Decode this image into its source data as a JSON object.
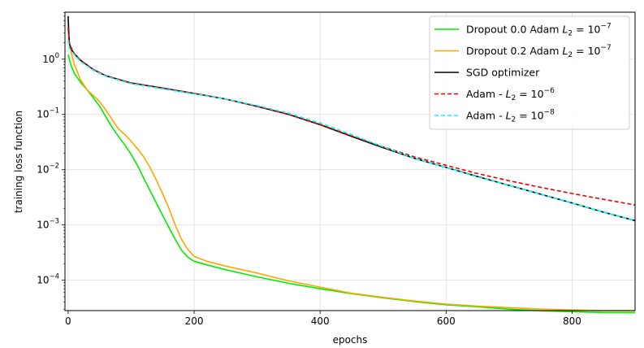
{
  "chart_data": {
    "type": "line",
    "xlabel": "epochs",
    "ylabel": "training loss function",
    "xlim": [
      -5,
      900
    ],
    "ylim_log10": [
      -4.55,
      0.85
    ],
    "yscale": "log",
    "grid": true,
    "legend_position": "top-right",
    "x_ticks": [
      {
        "value": 0,
        "label": "0"
      },
      {
        "value": 200,
        "label": "200"
      },
      {
        "value": 400,
        "label": "400"
      },
      {
        "value": 600,
        "label": "600"
      },
      {
        "value": 800,
        "label": "800"
      }
    ],
    "y_ticks": [
      {
        "exp": 0,
        "base": "10",
        "sup": "0"
      },
      {
        "exp": -1,
        "base": "10",
        "sup": "−1"
      },
      {
        "exp": -2,
        "base": "10",
        "sup": "−2"
      },
      {
        "exp": -3,
        "base": "10",
        "sup": "−3"
      },
      {
        "exp": -4,
        "base": "10",
        "sup": "−4"
      }
    ],
    "series": [
      {
        "name": "Dropout 0.0 Adam L2 = 10^-7",
        "legend": {
          "prefix": "Dropout 0.0 Adam ",
          "var": "L",
          "sub": "2",
          "eq": " = 10",
          "sup": "−7"
        },
        "color": "#00ee00",
        "dash": "solid",
        "x": [
          0,
          5,
          10,
          20,
          30,
          40,
          50,
          60,
          70,
          80,
          90,
          100,
          110,
          120,
          130,
          140,
          150,
          160,
          170,
          180,
          190,
          200,
          220,
          250,
          300,
          350,
          400,
          450,
          500,
          550,
          600,
          650,
          700,
          750,
          800,
          850,
          900
        ],
        "y": [
          1.2,
          0.75,
          0.55,
          0.38,
          0.28,
          0.2,
          0.14,
          0.09,
          0.058,
          0.04,
          0.028,
          0.019,
          0.012,
          0.007,
          0.0042,
          0.0025,
          0.0015,
          0.0009,
          0.00055,
          0.00035,
          0.00026,
          0.00022,
          0.00019,
          0.000155,
          0.000115,
          8.8e-05,
          7e-05,
          5.7e-05,
          4.8e-05,
          4.1e-05,
          3.6e-05,
          3.3e-05,
          3e-05,
          2.8e-05,
          2.7e-05,
          2.6e-05,
          2.6e-05
        ]
      },
      {
        "name": "Dropout 0.2 Adam L2 = 10^-7",
        "legend": {
          "prefix": "Dropout 0.2 Adam ",
          "var": "L",
          "sub": "2",
          "eq": " = 10",
          "sup": "−7"
        },
        "color": "#ffa500",
        "dash": "solid",
        "x": [
          0,
          2,
          5,
          10,
          20,
          30,
          40,
          50,
          60,
          70,
          80,
          90,
          100,
          110,
          120,
          130,
          140,
          150,
          160,
          170,
          180,
          190,
          200,
          220,
          250,
          300,
          350,
          400,
          450,
          500,
          550,
          600,
          650,
          700,
          750,
          800,
          850,
          900
        ],
        "y": [
          3.5,
          2.0,
          1.3,
          0.8,
          0.42,
          0.28,
          0.22,
          0.17,
          0.12,
          0.08,
          0.055,
          0.043,
          0.033,
          0.024,
          0.017,
          0.011,
          0.0065,
          0.0037,
          0.002,
          0.001,
          0.00055,
          0.00036,
          0.00027,
          0.00022,
          0.00018,
          0.000135,
          9.7e-05,
          7.5e-05,
          5.8e-05,
          4.9e-05,
          4.2e-05,
          3.7e-05,
          3.4e-05,
          3.2e-05,
          3e-05,
          2.9e-05,
          2.8e-05,
          2.8e-05
        ]
      },
      {
        "name": "SGD optimizer",
        "legend": {
          "prefix": "SGD optimizer"
        },
        "color": "#000000",
        "dash": "solid",
        "x": [
          0,
          1,
          2,
          5,
          10,
          20,
          40,
          60,
          80,
          100,
          150,
          200,
          250,
          300,
          350,
          400,
          450,
          500,
          550,
          600,
          650,
          700,
          750,
          800,
          850,
          900
        ],
        "y": [
          6.0,
          3.0,
          1.9,
          1.5,
          1.25,
          0.95,
          0.65,
          0.5,
          0.43,
          0.37,
          0.3,
          0.24,
          0.19,
          0.14,
          0.1,
          0.065,
          0.04,
          0.025,
          0.016,
          0.011,
          0.0075,
          0.0052,
          0.0036,
          0.0025,
          0.0017,
          0.0012
        ]
      },
      {
        "name": "Adam - L2 = 10^-6",
        "legend": {
          "prefix": "Adam - ",
          "var": "L",
          "sub": "2",
          "eq": " = 10",
          "sup": "−6"
        },
        "color": "#ee0000",
        "dash": "dashed",
        "x": [
          0,
          2,
          5,
          10,
          20,
          40,
          60,
          80,
          100,
          150,
          200,
          250,
          300,
          350,
          400,
          450,
          500,
          550,
          600,
          650,
          700,
          750,
          800,
          850,
          900
        ],
        "y": [
          3.8,
          2.0,
          1.6,
          1.25,
          0.95,
          0.65,
          0.5,
          0.43,
          0.37,
          0.3,
          0.24,
          0.19,
          0.14,
          0.1,
          0.066,
          0.041,
          0.026,
          0.017,
          0.012,
          0.0085,
          0.0063,
          0.0048,
          0.0037,
          0.0029,
          0.0023
        ]
      },
      {
        "name": "Adam - L2 = 10^-8",
        "legend": {
          "prefix": "Adam - ",
          "var": "L",
          "sub": "2",
          "eq": " = 10",
          "sup": "−8"
        },
        "color": "#00ffff",
        "dash": "dashed",
        "x": [
          0,
          2,
          5,
          10,
          20,
          40,
          60,
          80,
          100,
          150,
          200,
          250,
          300,
          350,
          400,
          450,
          500,
          550,
          600,
          650,
          700,
          750,
          800,
          850,
          900
        ],
        "y": [
          2.2,
          1.6,
          1.4,
          1.2,
          0.9,
          0.63,
          0.49,
          0.42,
          0.36,
          0.29,
          0.235,
          0.19,
          0.145,
          0.105,
          0.07,
          0.043,
          0.026,
          0.016,
          0.011,
          0.0074,
          0.0052,
          0.0036,
          0.0025,
          0.0017,
          0.0012
        ]
      }
    ]
  }
}
